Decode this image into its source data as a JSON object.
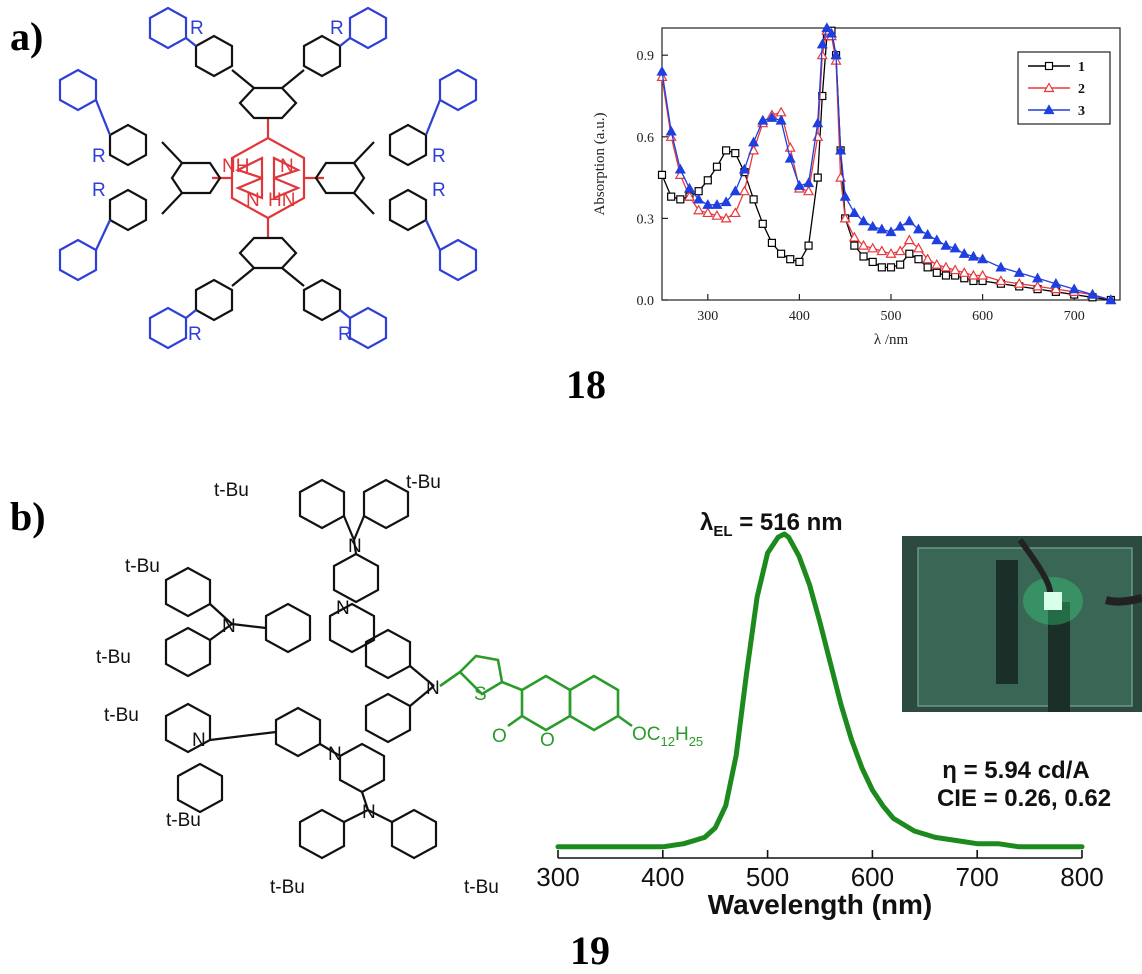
{
  "panels": {
    "a": {
      "label": "a)",
      "compound_number": "18",
      "substituent_label": "R",
      "core_atoms": [
        "NH",
        "N",
        "N",
        "HN"
      ]
    },
    "b": {
      "label": "b)",
      "compound_number": "19",
      "tbu_label": "t-Bu",
      "dendron_atoms": [
        "N",
        "N",
        "N",
        "N",
        "N",
        "N",
        "N"
      ],
      "coumarin_atoms": {
        "s": "S",
        "o1": "O",
        "o2": "O",
        "sub": "OC12H25"
      },
      "peak_annotation": "λEL = 516 nm",
      "efficiency_text": "η = 5.94 cd/A",
      "cie_text": "CIE = 0.26, 0.62"
    }
  },
  "colors": {
    "series_1": "#000000",
    "series_2": "#e8383d",
    "series_3": "#1f3fe0",
    "el_curve": "#1d8a1d",
    "porphyrin_core": "#e0363a",
    "coumarin": "#2e3fd6"
  },
  "chart_data": [
    {
      "type": "line",
      "ylabel": "Absorption (a.u.)",
      "xlabel": "λ /nm",
      "xlim": [
        250,
        750
      ],
      "ylim": [
        0,
        1.0
      ],
      "xticks": [
        "300",
        "400",
        "500",
        "600",
        "700"
      ],
      "yticks": [
        "0.0",
        "0.3",
        "0.6",
        "0.9"
      ],
      "legend_position": "top-right",
      "series": [
        {
          "name": "1",
          "marker": "square-open",
          "x": [
            250,
            260,
            270,
            280,
            290,
            300,
            310,
            320,
            330,
            340,
            350,
            360,
            370,
            380,
            390,
            400,
            410,
            420,
            425,
            430,
            435,
            440,
            445,
            450,
            460,
            470,
            480,
            490,
            500,
            510,
            520,
            530,
            540,
            550,
            560,
            570,
            580,
            590,
            600,
            620,
            640,
            660,
            680,
            700,
            720,
            740
          ],
          "y": [
            0.46,
            0.38,
            0.37,
            0.38,
            0.4,
            0.44,
            0.49,
            0.55,
            0.54,
            0.47,
            0.37,
            0.28,
            0.21,
            0.17,
            0.15,
            0.14,
            0.2,
            0.45,
            0.75,
            0.97,
            0.99,
            0.9,
            0.55,
            0.3,
            0.2,
            0.16,
            0.14,
            0.12,
            0.12,
            0.13,
            0.17,
            0.15,
            0.12,
            0.1,
            0.09,
            0.09,
            0.08,
            0.07,
            0.07,
            0.06,
            0.05,
            0.04,
            0.03,
            0.02,
            0.01,
            0.0
          ]
        },
        {
          "name": "2",
          "marker": "triangle-open",
          "x": [
            250,
            260,
            270,
            280,
            290,
            300,
            310,
            320,
            330,
            340,
            350,
            360,
            370,
            380,
            390,
            400,
            410,
            420,
            425,
            430,
            435,
            440,
            445,
            450,
            460,
            470,
            480,
            490,
            500,
            510,
            520,
            530,
            540,
            550,
            560,
            570,
            580,
            590,
            600,
            620,
            640,
            660,
            680,
            700,
            720,
            740
          ],
          "y": [
            0.82,
            0.6,
            0.46,
            0.38,
            0.33,
            0.32,
            0.31,
            0.3,
            0.32,
            0.4,
            0.55,
            0.65,
            0.68,
            0.69,
            0.56,
            0.41,
            0.4,
            0.6,
            0.9,
            0.99,
            0.97,
            0.88,
            0.45,
            0.3,
            0.23,
            0.2,
            0.19,
            0.18,
            0.17,
            0.18,
            0.22,
            0.19,
            0.15,
            0.13,
            0.12,
            0.11,
            0.1,
            0.09,
            0.09,
            0.07,
            0.06,
            0.05,
            0.04,
            0.03,
            0.02,
            0.0
          ]
        },
        {
          "name": "3",
          "marker": "triangle-filled",
          "x": [
            250,
            260,
            270,
            280,
            290,
            300,
            310,
            320,
            330,
            340,
            350,
            360,
            370,
            380,
            390,
            400,
            410,
            420,
            425,
            430,
            435,
            440,
            445,
            450,
            460,
            470,
            480,
            490,
            500,
            510,
            520,
            530,
            540,
            550,
            560,
            570,
            580,
            590,
            600,
            620,
            640,
            660,
            680,
            700,
            720,
            740
          ],
          "y": [
            0.84,
            0.62,
            0.48,
            0.41,
            0.37,
            0.35,
            0.35,
            0.36,
            0.4,
            0.48,
            0.58,
            0.66,
            0.67,
            0.66,
            0.52,
            0.42,
            0.43,
            0.65,
            0.94,
            1.0,
            0.98,
            0.9,
            0.55,
            0.38,
            0.32,
            0.29,
            0.27,
            0.26,
            0.25,
            0.27,
            0.29,
            0.26,
            0.24,
            0.22,
            0.2,
            0.19,
            0.17,
            0.16,
            0.15,
            0.12,
            0.1,
            0.08,
            0.06,
            0.04,
            0.02,
            0.0
          ]
        }
      ]
    },
    {
      "type": "line",
      "xlabel": "Wavelength (nm)",
      "ylabel": "",
      "xlim": [
        300,
        800
      ],
      "ylim": [
        0,
        1.0
      ],
      "xticks": [
        "300",
        "400",
        "500",
        "600",
        "700",
        "800"
      ],
      "grid": false,
      "series": [
        {
          "x": [
            300,
            320,
            340,
            360,
            380,
            400,
            420,
            440,
            450,
            460,
            470,
            480,
            490,
            500,
            510,
            516,
            520,
            530,
            540,
            550,
            560,
            570,
            580,
            590,
            600,
            610,
            620,
            640,
            660,
            680,
            700,
            720,
            740,
            760,
            780,
            800
          ],
          "y": [
            0.01,
            0.01,
            0.01,
            0.01,
            0.01,
            0.01,
            0.02,
            0.04,
            0.07,
            0.14,
            0.3,
            0.56,
            0.8,
            0.94,
            0.99,
            1.0,
            0.99,
            0.93,
            0.84,
            0.72,
            0.59,
            0.46,
            0.35,
            0.26,
            0.19,
            0.14,
            0.1,
            0.06,
            0.04,
            0.03,
            0.02,
            0.02,
            0.01,
            0.01,
            0.01,
            0.01
          ]
        }
      ]
    }
  ]
}
